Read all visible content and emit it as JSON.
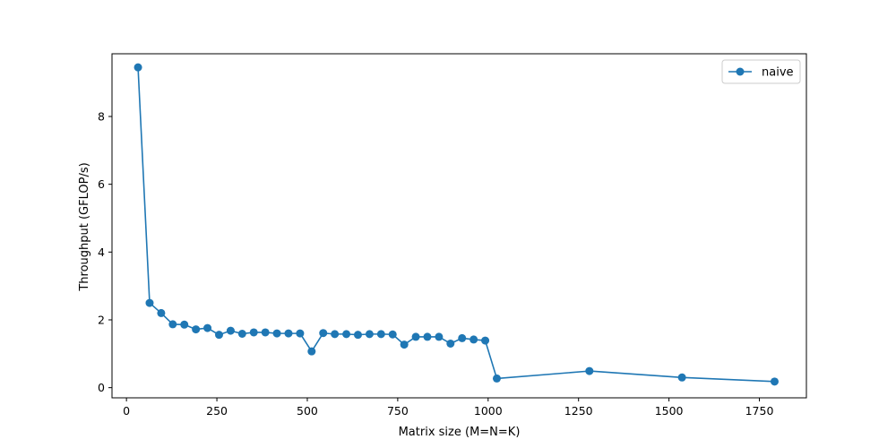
{
  "chart_data": {
    "type": "line",
    "title": "",
    "xlabel": "Matrix size (M=N=K)",
    "ylabel": "Throughput (GFLOP/s)",
    "xlim": [
      -40,
      1880
    ],
    "ylim": [
      -0.3,
      9.85
    ],
    "xticks": [
      0,
      250,
      500,
      750,
      1000,
      1250,
      1500,
      1750
    ],
    "yticks": [
      0,
      2,
      4,
      6,
      8
    ],
    "grid": false,
    "legend_position": "top-right",
    "series": [
      {
        "name": "naive",
        "color": "#1f77b4",
        "marker": "circle",
        "x": [
          32,
          64,
          96,
          128,
          160,
          192,
          224,
          256,
          288,
          320,
          352,
          384,
          416,
          448,
          480,
          512,
          544,
          576,
          608,
          640,
          672,
          704,
          736,
          768,
          800,
          832,
          864,
          896,
          928,
          960,
          992,
          1024,
          1280,
          1536,
          1792
        ],
        "y": [
          9.45,
          2.5,
          2.2,
          1.87,
          1.86,
          1.72,
          1.76,
          1.56,
          1.68,
          1.59,
          1.63,
          1.63,
          1.6,
          1.6,
          1.6,
          1.07,
          1.61,
          1.58,
          1.58,
          1.56,
          1.58,
          1.58,
          1.57,
          1.27,
          1.5,
          1.5,
          1.5,
          1.3,
          1.46,
          1.42,
          1.39,
          0.27,
          0.49,
          0.3,
          0.18
        ]
      }
    ]
  }
}
